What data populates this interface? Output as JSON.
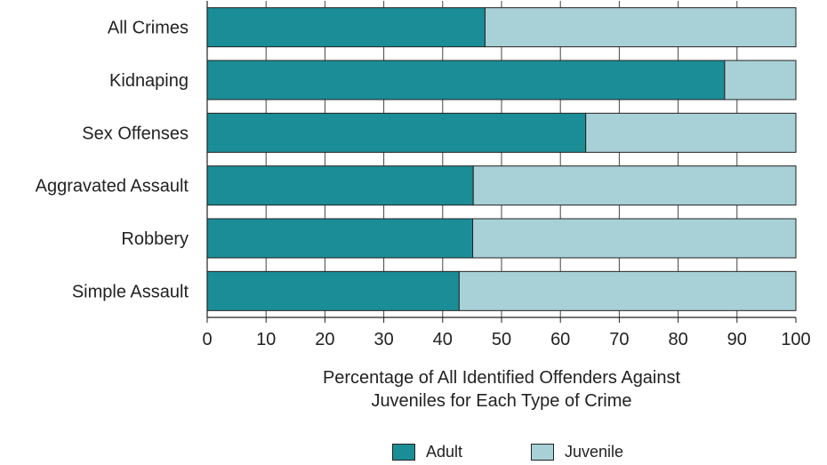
{
  "chart_data": {
    "type": "bar",
    "orientation": "horizontal",
    "stacked": true,
    "categories": [
      "All Crimes",
      "Kidnaping",
      "Sex Offenses",
      "Aggravated Assault",
      "Robbery",
      "Simple Assault"
    ],
    "series": [
      {
        "name": "Adult",
        "values": [
          47.2,
          87.9,
          64.3,
          45.2,
          45.1,
          42.8
        ],
        "color": "#1b8d96"
      },
      {
        "name": "Juvenile",
        "values": [
          52.8,
          12.1,
          35.7,
          54.8,
          54.9,
          57.2
        ],
        "color": "#a8d0d7"
      }
    ],
    "xlim": [
      0,
      100
    ],
    "xticks": [
      "0",
      "10",
      "20",
      "30",
      "40",
      "50",
      "60",
      "70",
      "80",
      "90",
      "100"
    ],
    "xlabel": "Percentage of All Identified Offenders Against Juveniles for Each Type of Crime",
    "xlabel_lines": [
      "Percentage of All Identified Offenders Against",
      "Juveniles for Each Type of Crime"
    ],
    "grid": true,
    "legend_position": "bottom"
  }
}
